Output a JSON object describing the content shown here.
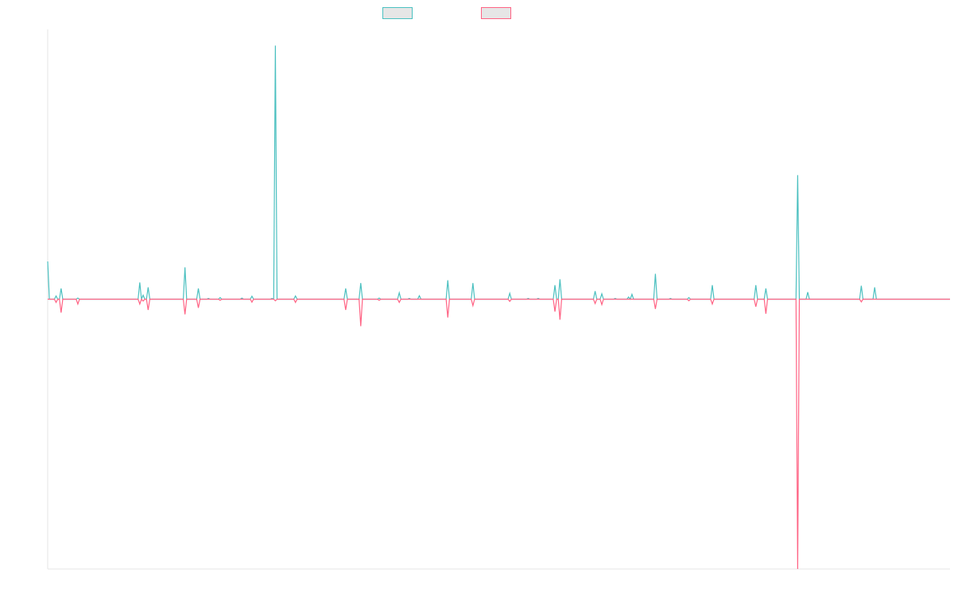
{
  "chart_data": {
    "type": "line",
    "title": "",
    "xlabel": "",
    "ylabel": "",
    "grid": false,
    "legend": {
      "placement": "top-center",
      "entries": [
        {
          "name": "",
          "color": "#4bc0c0"
        },
        {
          "name": "",
          "color": "#ff6384"
        }
      ]
    },
    "x": [
      0,
      1,
      2,
      3,
      4,
      5,
      6,
      7,
      8,
      9,
      10,
      11,
      12,
      13,
      14,
      15,
      16,
      17,
      18,
      19,
      20,
      21,
      22,
      23,
      24,
      25,
      26,
      27,
      28,
      29,
      30,
      31,
      32,
      33,
      34,
      35,
      36,
      37,
      38,
      39,
      40,
      41,
      42,
      43,
      44,
      45,
      46,
      47,
      48,
      49,
      50,
      51,
      52,
      53,
      54,
      55,
      56,
      57,
      58,
      59,
      60,
      61,
      62,
      63,
      64,
      65,
      66,
      67,
      68,
      69,
      70,
      71,
      72,
      73,
      74,
      75,
      76,
      77,
      78,
      79,
      80,
      81,
      82,
      83,
      84,
      85,
      86,
      87,
      88,
      89,
      90,
      91,
      92,
      93,
      94,
      95,
      96,
      97,
      98,
      99,
      100,
      101,
      102,
      103,
      104,
      105,
      106,
      107,
      108,
      109,
      110,
      111,
      112,
      113,
      114,
      115,
      116,
      117,
      118,
      119,
      120,
      121,
      122,
      123,
      124,
      125,
      126,
      127,
      128,
      129,
      130,
      131,
      132,
      133,
      134,
      135,
      136,
      137,
      138,
      139,
      140,
      141,
      142,
      143,
      144,
      145,
      146,
      147,
      148,
      149,
      150,
      151,
      152,
      153,
      154,
      155,
      156,
      157,
      158,
      159,
      160,
      161,
      162,
      163,
      164,
      165,
      166,
      167,
      168,
      169,
      170,
      171,
      172,
      173,
      174,
      175,
      176,
      177,
      178,
      179,
      180,
      181,
      182,
      183,
      184,
      185,
      186,
      187,
      188,
      189,
      190,
      191,
      192,
      193,
      194,
      195,
      196,
      197,
      198,
      199,
      200,
      201,
      202,
      203,
      204,
      205,
      206,
      207,
      208,
      209,
      210,
      211,
      212,
      213,
      214,
      215,
      216,
      217,
      218,
      219,
      220,
      221,
      222,
      223,
      224,
      225,
      226,
      227,
      228,
      229,
      230,
      231,
      232,
      233,
      234,
      235,
      236,
      237,
      238,
      239,
      240,
      241,
      242,
      243,
      244,
      245,
      246,
      247,
      248,
      249,
      250,
      251,
      252,
      253,
      254,
      255,
      256,
      257,
      258,
      259,
      260,
      261,
      262,
      263,
      264,
      265,
      266,
      267,
      268,
      269,
      270,
      271,
      272,
      273,
      274,
      275,
      276,
      277,
      278,
      279,
      280,
      281,
      282,
      283,
      284,
      285,
      286,
      287,
      288,
      289,
      290,
      291,
      292,
      293,
      294,
      295,
      296,
      297,
      298,
      299,
      300,
      301,
      302,
      303,
      304,
      305,
      306,
      307,
      308,
      309,
      310,
      311,
      312,
      313,
      314,
      315,
      316,
      317,
      318,
      319,
      320,
      321,
      322,
      323,
      324,
      325,
      326,
      327,
      328,
      329,
      330,
      331,
      332,
      333,
      334,
      335,
      336,
      337,
      338,
      339,
      340,
      341,
      342,
      343,
      344,
      345,
      346,
      347,
      348,
      349,
      350,
      351,
      352,
      353,
      354,
      355,
      356,
      357,
      358,
      359,
      360,
      361,
      362,
      363,
      364,
      365,
      366,
      367,
      368,
      369,
      370,
      371,
      372,
      373,
      374,
      375,
      376,
      377,
      378,
      379,
      380,
      381,
      382,
      383,
      384,
      385,
      386,
      387,
      388,
      389,
      390,
      391,
      392,
      393,
      394,
      395,
      396,
      397,
      398,
      399,
      400,
      401,
      402,
      403,
      404,
      405,
      406,
      407,
      408,
      409,
      410,
      411,
      412,
      413,
      414,
      415,
      416,
      417,
      418,
      419,
      420,
      421,
      422,
      423,
      424,
      425,
      426,
      427,
      428,
      429,
      430,
      431,
      432,
      433,
      434,
      435,
      436,
      437,
      438,
      439,
      440,
      441,
      442,
      443,
      444,
      445,
      446,
      447,
      448,
      449,
      450,
      451,
      452,
      453,
      454,
      455,
      456,
      457,
      458,
      459,
      460,
      461,
      462,
      463,
      464,
      465,
      466,
      467,
      468,
      469,
      470,
      471,
      472,
      473,
      474,
      475,
      476,
      477,
      478,
      479,
      480,
      481,
      482,
      483,
      484,
      485,
      486,
      487,
      488,
      489,
      490,
      491,
      492,
      493,
      494,
      495,
      496,
      497,
      498,
      499,
      500,
      501,
      502,
      503,
      504,
      505,
      506,
      507,
      508,
      509,
      510,
      511,
      512,
      513,
      514,
      515,
      516,
      517,
      518,
      519,
      520,
      521,
      522,
      523,
      524,
      525,
      526,
      527,
      528,
      529,
      530,
      531,
      532,
      533,
      534,
      535,
      536,
      537,
      538,
      539
    ],
    "xlim": [
      0,
      539
    ],
    "ylim": [
      -1,
      1
    ],
    "series": [
      {
        "color": "#4bc0c0",
        "events": [
          [
            0,
            0.14
          ],
          [
            5,
            0.012
          ],
          [
            8,
            0.04
          ],
          [
            18,
            0.004
          ],
          [
            55,
            0.062
          ],
          [
            57,
            0.015
          ],
          [
            60,
            0.044
          ],
          [
            82,
            0.118
          ],
          [
            90,
            0.04
          ],
          [
            96,
            0.003
          ],
          [
            103,
            0.006
          ],
          [
            116,
            0.004
          ],
          [
            122,
            0.011
          ],
          [
            134,
            0.003
          ],
          [
            136,
            0.94
          ],
          [
            148,
            0.012
          ],
          [
            178,
            0.04
          ],
          [
            187,
            0.06
          ],
          [
            198,
            0.004
          ],
          [
            210,
            0.024
          ],
          [
            216,
            0.003
          ],
          [
            222,
            0.013
          ],
          [
            239,
            0.07
          ],
          [
            254,
            0.06
          ],
          [
            276,
            0.022
          ],
          [
            287,
            0.003
          ],
          [
            293,
            0.003
          ],
          [
            303,
            0.052
          ],
          [
            306,
            0.074
          ],
          [
            327,
            0.03
          ],
          [
            331,
            0.02
          ],
          [
            339,
            0.003
          ],
          [
            347,
            0.008
          ],
          [
            349,
            0.018
          ],
          [
            363,
            0.094
          ],
          [
            372,
            0.003
          ],
          [
            383,
            0.006
          ],
          [
            397,
            0.052
          ],
          [
            423,
            0.052
          ],
          [
            429,
            0.04
          ],
          [
            448,
            0.46
          ],
          [
            454,
            0.026
          ],
          [
            486,
            0.05
          ],
          [
            494,
            0.044
          ]
        ]
      },
      {
        "color": "#ff6384",
        "events": [
          [
            5,
            -0.012
          ],
          [
            8,
            -0.05
          ],
          [
            18,
            -0.018
          ],
          [
            55,
            -0.018
          ],
          [
            57,
            -0.007
          ],
          [
            60,
            -0.04
          ],
          [
            82,
            -0.056
          ],
          [
            90,
            -0.032
          ],
          [
            103,
            -0.004
          ],
          [
            122,
            -0.011
          ],
          [
            136,
            -0.006
          ],
          [
            148,
            -0.012
          ],
          [
            178,
            -0.04
          ],
          [
            187,
            -0.1
          ],
          [
            198,
            -0.004
          ],
          [
            210,
            -0.012
          ],
          [
            239,
            -0.068
          ],
          [
            254,
            -0.024
          ],
          [
            276,
            -0.008
          ],
          [
            303,
            -0.046
          ],
          [
            306,
            -0.076
          ],
          [
            327,
            -0.016
          ],
          [
            331,
            -0.02
          ],
          [
            363,
            -0.036
          ],
          [
            383,
            -0.006
          ],
          [
            397,
            -0.018
          ],
          [
            423,
            -0.028
          ],
          [
            429,
            -0.054
          ],
          [
            448,
            -1.0
          ],
          [
            486,
            -0.01
          ]
        ]
      }
    ]
  }
}
